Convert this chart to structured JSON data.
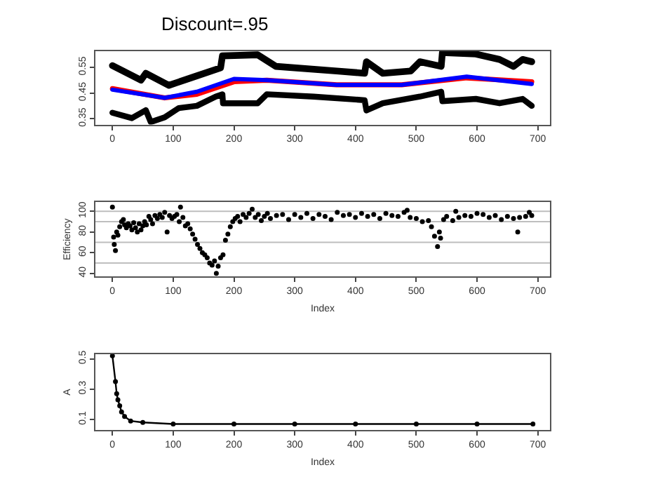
{
  "chart_data": [
    {
      "type": "line",
      "title": "Discount=.95",
      "xlim": [
        -28,
        720
      ],
      "xticks": [
        0,
        100,
        200,
        300,
        400,
        500,
        600,
        700
      ],
      "ylim": [
        0.327,
        0.613
      ],
      "yticks": [
        0.35,
        0.45,
        0.55
      ],
      "marker": "none",
      "series": [
        {
          "color": "#000000",
          "x": [
            0,
            47,
            55,
            93,
            139,
            178,
            181,
            239,
            269,
            369,
            415,
            418,
            445,
            491,
            506,
            541,
            543,
            598,
            637,
            660,
            675,
            690
          ],
          "values": [
            0.557,
            0.5,
            0.527,
            0.48,
            0.517,
            0.548,
            0.595,
            0.599,
            0.554,
            0.536,
            0.527,
            0.572,
            0.527,
            0.536,
            0.572,
            0.554,
            0.608,
            0.602,
            0.581,
            0.554,
            0.581,
            0.572
          ]
        },
        {
          "color": "#000000",
          "x": [
            0,
            32,
            55,
            63,
            86,
            109,
            139,
            170,
            181,
            182,
            239,
            254,
            331,
            415,
            418,
            445,
            506,
            541,
            543,
            598,
            637,
            675,
            690
          ],
          "values": [
            0.373,
            0.352,
            0.383,
            0.337,
            0.355,
            0.391,
            0.4,
            0.436,
            0.445,
            0.41,
            0.41,
            0.445,
            0.436,
            0.422,
            0.382,
            0.41,
            0.436,
            0.455,
            0.418,
            0.427,
            0.41,
            0.427,
            0.4
          ]
        },
        {
          "color": "#ff0000",
          "x": [
            0,
            86,
            139,
            200,
            254,
            369,
            476,
            583,
            690
          ],
          "values": [
            0.467,
            0.431,
            0.445,
            0.494,
            0.5,
            0.482,
            0.482,
            0.509,
            0.494
          ]
        },
        {
          "color": "#0000ff",
          "x": [
            0,
            86,
            139,
            200,
            254,
            369,
            476,
            583,
            690
          ],
          "values": [
            0.463,
            0.431,
            0.455,
            0.505,
            0.5,
            0.482,
            0.482,
            0.514,
            0.485
          ]
        }
      ]
    },
    {
      "type": "scatter",
      "xlabel": "Index",
      "ylabel": "Efficiency",
      "xlim": [
        -28,
        720
      ],
      "xticks": [
        0,
        100,
        200,
        300,
        400,
        500,
        600,
        700
      ],
      "ylim": [
        36.8,
        109
      ],
      "yticks": [
        40,
        60,
        80,
        100
      ],
      "marker": "circle",
      "ref_lines": [
        {
          "axis": "y",
          "value": 100,
          "color": "#bebebe"
        },
        {
          "axis": "y",
          "value": 90,
          "color": "#bebebe"
        },
        {
          "axis": "y",
          "value": 70,
          "color": "#bebebe"
        },
        {
          "axis": "y",
          "value": 50,
          "color": "#bebebe"
        }
      ],
      "series": [
        {
          "color": "#000000",
          "x": [
            0,
            2,
            3,
            5,
            7,
            9,
            12,
            15,
            18,
            20,
            23,
            26,
            29,
            32,
            35,
            38,
            41,
            44,
            47,
            50,
            53,
            56,
            60,
            63,
            66,
            70,
            74,
            78,
            82,
            86,
            90,
            94,
            98,
            102,
            106,
            110,
            112,
            116,
            120,
            124,
            128,
            132,
            136,
            140,
            144,
            148,
            152,
            156,
            160,
            164,
            168,
            171,
            174,
            178,
            182,
            186,
            190,
            194,
            198,
            202,
            206,
            210,
            215,
            220,
            225,
            230,
            235,
            240,
            245,
            250,
            255,
            260,
            270,
            280,
            290,
            300,
            310,
            320,
            330,
            340,
            350,
            360,
            370,
            380,
            390,
            400,
            410,
            420,
            430,
            440,
            450,
            460,
            470,
            480,
            485,
            490,
            500,
            510,
            520,
            525,
            530,
            535,
            538,
            540,
            545,
            550,
            560,
            565,
            570,
            580,
            590,
            600,
            610,
            620,
            630,
            640,
            650,
            660,
            667,
            670,
            680,
            686,
            690
          ],
          "values": [
            104,
            75,
            68,
            62,
            80,
            77,
            85,
            90,
            92,
            87,
            84,
            88,
            86,
            82,
            89,
            84,
            80,
            88,
            82,
            86,
            90,
            87,
            95,
            92,
            88,
            96,
            93,
            97,
            94,
            99,
            80,
            96,
            93,
            95,
            97,
            90,
            104,
            94,
            86,
            88,
            83,
            78,
            73,
            68,
            64,
            60,
            58,
            55,
            50,
            48,
            52,
            40,
            47,
            55,
            58,
            72,
            78,
            85,
            90,
            93,
            95,
            90,
            97,
            94,
            98,
            102,
            94,
            97,
            91,
            95,
            98,
            93,
            96,
            97,
            92,
            97,
            94,
            98,
            93,
            97,
            95,
            92,
            99,
            96,
            97,
            94,
            98,
            95,
            97,
            93,
            98,
            96,
            95,
            99,
            101,
            94,
            93,
            90,
            91,
            85,
            76,
            66,
            80,
            74,
            92,
            95,
            91,
            100,
            94,
            96,
            95,
            98,
            97,
            94,
            96,
            92,
            95,
            93,
            80,
            94,
            95,
            99,
            96
          ]
        }
      ]
    },
    {
      "type": "line",
      "xlabel": "Index",
      "ylabel": "A",
      "xlim": [
        -28,
        720
      ],
      "xticks": [
        0,
        100,
        200,
        300,
        400,
        500,
        600,
        700
      ],
      "ylim": [
        0.029,
        0.531
      ],
      "yticks": [
        0.1,
        0.3,
        0.5
      ],
      "marker": "circle",
      "series": [
        {
          "color": "#000000",
          "x": [
            0,
            5,
            7,
            9,
            12,
            15,
            20,
            30,
            50,
            100,
            200,
            300,
            400,
            500,
            600,
            692
          ],
          "values": [
            0.52,
            0.35,
            0.27,
            0.23,
            0.19,
            0.15,
            0.12,
            0.09,
            0.08,
            0.07,
            0.07,
            0.07,
            0.07,
            0.07,
            0.07,
            0.07
          ]
        }
      ]
    }
  ]
}
